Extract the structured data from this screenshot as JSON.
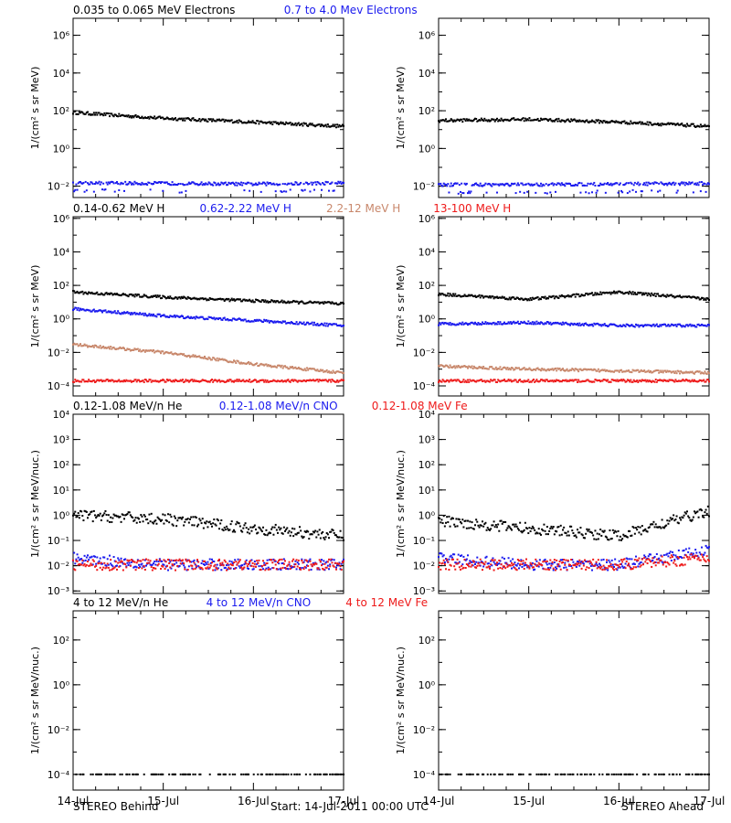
{
  "footer": {
    "left": "STEREO Behind",
    "center": "Start: 14-Jul-2011 00:00 UTC",
    "right": "STEREO Ahead"
  },
  "x_ticks": [
    "14-Jul",
    "15-Jul",
    "16-Jul",
    "17-Jul"
  ],
  "colors": {
    "black": "#000000",
    "blue": "#1a1aee",
    "tan": "#c8876b",
    "red": "#ee1a1a"
  },
  "chart_data": [
    {
      "type": "scatter",
      "spacecraft": "STEREO Behind",
      "panel": "electrons",
      "ylabel": "1/(cm² s sr MeV)",
      "yscale": "log",
      "ylim": [
        0.001,
        10000000
      ],
      "yticks": [
        "10⁻²",
        "10⁰",
        "10²",
        "10⁴",
        "10⁶"
      ],
      "x": [
        "14-Jul",
        "15-Jul",
        "16-Jul",
        "17-Jul"
      ],
      "series": [
        {
          "name": "0.035 to 0.065 MeV Electrons",
          "color": "black",
          "values": [
            80,
            40,
            25,
            15
          ]
        },
        {
          "name": "0.7 to 4.0 Mev Electrons",
          "color": "blue",
          "values": [
            0.015,
            0.014,
            0.013,
            0.015
          ]
        }
      ]
    },
    {
      "type": "scatter",
      "spacecraft": "STEREO Ahead",
      "panel": "electrons",
      "ylabel": "1/(cm² s sr MeV)",
      "yscale": "log",
      "ylim": [
        0.001,
        10000000
      ],
      "yticks": [
        "10⁻²",
        "10⁰",
        "10²",
        "10⁴",
        "10⁶"
      ],
      "x": [
        "14-Jul",
        "15-Jul",
        "16-Jul",
        "17-Jul"
      ],
      "series": [
        {
          "color": "black",
          "values": [
            30,
            35,
            25,
            15
          ]
        },
        {
          "color": "blue",
          "values": [
            0.012,
            0.012,
            0.013,
            0.014
          ]
        }
      ]
    },
    {
      "type": "scatter",
      "spacecraft": "STEREO Behind",
      "panel": "protons",
      "ylabel": "1/(cm² s sr MeV)",
      "yscale": "log",
      "ylim": [
        1e-05,
        1000000
      ],
      "yticks": [
        "10⁻⁴",
        "10⁻²",
        "10⁰",
        "10²",
        "10⁴",
        "10⁶"
      ],
      "x": [
        "14-Jul",
        "15-Jul",
        "16-Jul",
        "17-Jul"
      ],
      "series": [
        {
          "name": "0.14-0.62 MeV H",
          "color": "black",
          "values": [
            40,
            20,
            12,
            8
          ]
        },
        {
          "name": "0.62-2.22 MeV H",
          "color": "blue",
          "values": [
            4,
            1.5,
            0.8,
            0.4
          ]
        },
        {
          "name": "2.2-12 MeV H",
          "color": "tan",
          "values": [
            0.03,
            0.01,
            0.002,
            0.0006
          ]
        },
        {
          "name": "13-100 MeV H",
          "color": "red",
          "values": [
            0.0002,
            0.0002,
            0.0002,
            0.0002
          ]
        }
      ]
    },
    {
      "type": "scatter",
      "spacecraft": "STEREO Ahead",
      "panel": "protons",
      "ylabel": "1/(cm² s sr MeV)",
      "yscale": "log",
      "ylim": [
        1e-05,
        1000000
      ],
      "yticks": [
        "10⁻⁴",
        "10⁻²",
        "10⁰",
        "10²",
        "10⁴",
        "10⁶"
      ],
      "x": [
        "14-Jul",
        "15-Jul",
        "16-Jul",
        "17-Jul"
      ],
      "series": [
        {
          "color": "black",
          "values": [
            30,
            15,
            40,
            15
          ]
        },
        {
          "color": "blue",
          "values": [
            0.5,
            0.6,
            0.4,
            0.4
          ]
        },
        {
          "color": "tan",
          "values": [
            0.0015,
            0.001,
            0.0008,
            0.0006
          ]
        },
        {
          "color": "red",
          "values": [
            0.0002,
            0.0002,
            0.0002,
            0.0002
          ]
        }
      ]
    },
    {
      "type": "scatter",
      "spacecraft": "STEREO Behind",
      "panel": "heavy ions low energy",
      "ylabel": "1/(cm² s sr MeV/nuc.)",
      "yscale": "log",
      "ylim": [
        0.001,
        10000
      ],
      "yticks": [
        "10⁻³",
        "10⁻²",
        "10⁻¹",
        "10⁰",
        "10¹",
        "10²",
        "10³",
        "10⁴"
      ],
      "x": [
        "14-Jul",
        "15-Jul",
        "16-Jul",
        "17-Jul"
      ],
      "series": [
        {
          "name": "0.12-1.08 MeV/n He",
          "color": "black",
          "values": [
            1.0,
            0.7,
            0.3,
            0.15
          ]
        },
        {
          "name": "0.12-1.08 MeV/n CNO",
          "color": "blue",
          "values": [
            0.02,
            0.011,
            0.011,
            0.011
          ]
        },
        {
          "name": "0.12-1.08 MeV Fe",
          "color": "red",
          "values": [
            0.011,
            0.011,
            0.011,
            0.011
          ]
        }
      ]
    },
    {
      "type": "scatter",
      "spacecraft": "STEREO Ahead",
      "panel": "heavy ions low energy",
      "ylabel": "1/(cm² s sr MeV/nuc.)",
      "yscale": "log",
      "ylim": [
        0.001,
        10000
      ],
      "yticks": [
        "10⁻³",
        "10⁻²",
        "10⁻¹",
        "10⁰",
        "10¹",
        "10²",
        "10³",
        "10⁴"
      ],
      "x": [
        "14-Jul",
        "15-Jul",
        "16-Jul",
        "17-Jul"
      ],
      "series": [
        {
          "color": "black",
          "values": [
            0.6,
            0.3,
            0.15,
            1.5
          ]
        },
        {
          "color": "blue",
          "values": [
            0.02,
            0.011,
            0.011,
            0.04
          ]
        },
        {
          "color": "red",
          "values": [
            0.011,
            0.011,
            0.011,
            0.02
          ]
        }
      ]
    },
    {
      "type": "scatter",
      "spacecraft": "STEREO Behind",
      "panel": "heavy ions high energy",
      "ylabel": "1/(cm² s sr MeV/nuc.)",
      "yscale": "log",
      "ylim": [
        1e-05,
        1000
      ],
      "yticks": [
        "10⁻⁴",
        "10⁻²",
        "10⁰",
        "10²"
      ],
      "x": [
        "14-Jul",
        "15-Jul",
        "16-Jul",
        "17-Jul"
      ],
      "series": [
        {
          "name": "4 to 12 MeV/n He",
          "color": "black",
          "values": [
            0.0001,
            0.0001,
            0.0001,
            0.0001
          ]
        },
        {
          "name": "4 to 12 MeV/n CNO",
          "color": "blue",
          "values": []
        },
        {
          "name": "4 to 12 MeV Fe",
          "color": "red",
          "values": []
        }
      ]
    },
    {
      "type": "scatter",
      "spacecraft": "STEREO Ahead",
      "panel": "heavy ions high energy",
      "ylabel": "1/(cm² s sr MeV/nuc.)",
      "yscale": "log",
      "ylim": [
        1e-05,
        1000
      ],
      "yticks": [
        "10⁻⁴",
        "10⁻²",
        "10⁰",
        "10²"
      ],
      "x": [
        "14-Jul",
        "15-Jul",
        "16-Jul",
        "17-Jul"
      ],
      "series": [
        {
          "color": "black",
          "values": [
            0.0001,
            0.0001,
            0.0001,
            0.0001
          ]
        },
        {
          "color": "blue",
          "values": []
        },
        {
          "color": "red",
          "values": []
        }
      ]
    }
  ]
}
